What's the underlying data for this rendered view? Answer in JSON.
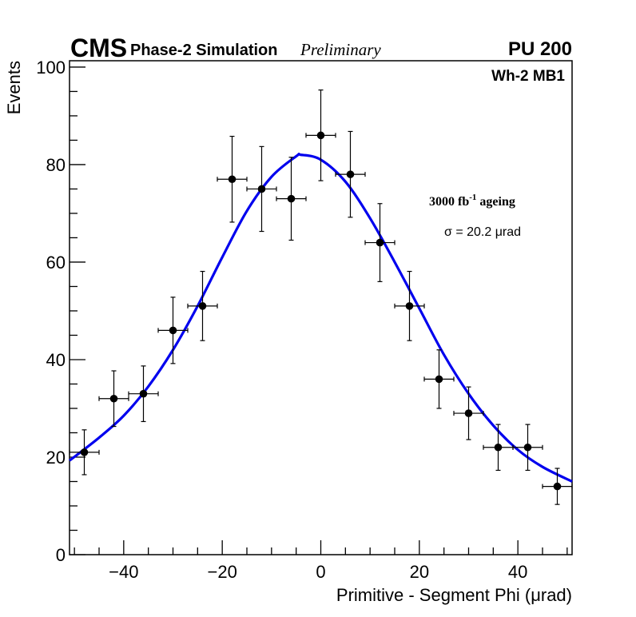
{
  "header": {
    "experiment": "CMS",
    "subtitle": "Phase-2 Simulation",
    "status": "Preliminary",
    "pileup": "PU 200"
  },
  "annotations": {
    "station": "Wh-2 MB1",
    "ageing_prefix": "3000 fb",
    "ageing_sup": "-1",
    "ageing_suffix": " ageing",
    "sigma": "σ = 20.2 μrad"
  },
  "colors": {
    "fit": "#0000ee",
    "markers": "#000000",
    "frame": "#000000"
  },
  "chart_data": {
    "type": "scatter",
    "title": "",
    "xlabel": "Primitive - Segment Phi (μrad)",
    "ylabel": "Events",
    "xlim": [
      -51,
      51
    ],
    "ylim": [
      0,
      101.3
    ],
    "grid": false,
    "xticks": [
      -40,
      -20,
      0,
      20,
      40
    ],
    "xtick_labels": [
      "−40",
      "−20",
      "0",
      "20",
      "40"
    ],
    "xminor_step": 5,
    "yticks": [
      0,
      20,
      40,
      60,
      80,
      100
    ],
    "ytick_labels": [
      "0",
      "20",
      "40",
      "60",
      "80",
      "100"
    ],
    "yminor_step": 5,
    "bin_half_width": 3,
    "series": [
      {
        "name": "data",
        "x": [
          -48,
          -42,
          -36,
          -30,
          -24,
          -18,
          -12,
          -6,
          0,
          6,
          12,
          18,
          24,
          30,
          36,
          42,
          48
        ],
        "y": [
          21,
          32,
          33,
          46,
          51,
          77,
          75,
          73,
          86,
          78,
          64,
          51,
          36,
          29,
          22,
          22,
          14
        ],
        "yerr": [
          4.6,
          5.7,
          5.7,
          6.8,
          7.1,
          8.8,
          8.7,
          8.5,
          9.3,
          8.8,
          8.0,
          7.1,
          6.0,
          5.4,
          4.7,
          4.7,
          3.7
        ]
      },
      {
        "name": "fit",
        "x": [
          -51,
          -45,
          -40,
          -35,
          -30,
          -25,
          -20,
          -15,
          -10,
          -5,
          -4,
          0,
          5,
          10,
          15,
          20,
          25,
          30,
          35,
          40,
          45,
          51
        ],
        "y": [
          19.3,
          24,
          28.5,
          34.5,
          42,
          51,
          61,
          70.5,
          77.5,
          81.7,
          82,
          81,
          76.5,
          69,
          60,
          50.5,
          41,
          33,
          26.5,
          21.5,
          18,
          15
        ]
      }
    ]
  }
}
